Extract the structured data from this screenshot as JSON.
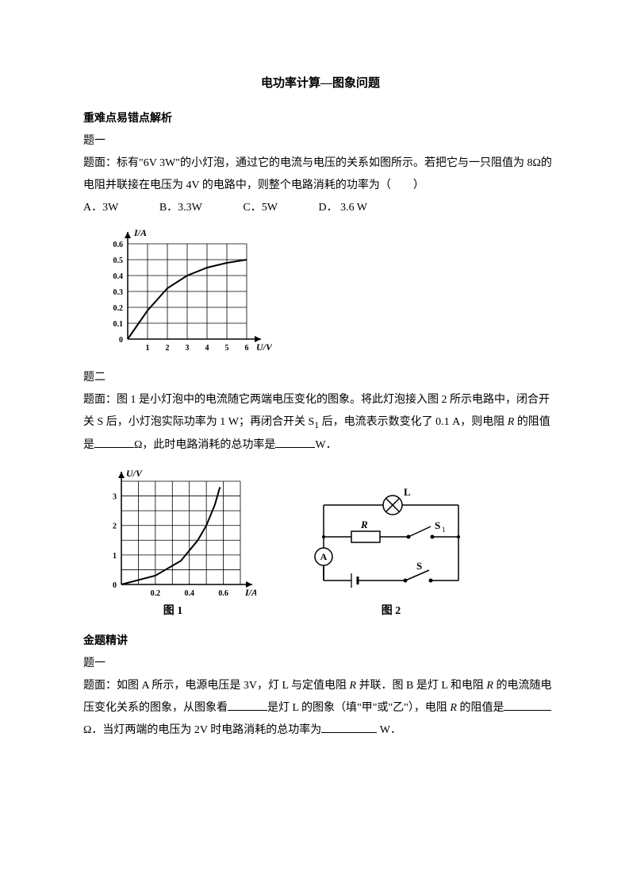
{
  "title": "电功率计算—图象问题",
  "section1": {
    "header": "重难点易错点解析",
    "q1": {
      "label": "题一",
      "body": "题面：标有\"6V 3W\"的小灯泡，通过它的电流与电压的关系如图所示。若把它与一只阻值为 8Ω的电阻并联接在电压为 4V 的电路中，则整个电路消耗的功率为（　　）",
      "options": {
        "a": "A．3W",
        "b": "B．3.3W",
        "c": "C．5W",
        "d": "D． 3.6 W"
      },
      "chart": {
        "type": "line",
        "y_label": "I/A",
        "x_label": "U/V",
        "x_ticks": [
          "1",
          "2",
          "3",
          "4",
          "5",
          "6"
        ],
        "y_ticks": [
          "0",
          "0.1",
          "0.2",
          "0.3",
          "0.4",
          "0.5",
          "0.6"
        ],
        "xlim": [
          0,
          6
        ],
        "ylim": [
          0,
          0.6
        ],
        "points": [
          [
            0,
            0
          ],
          [
            1,
            0.18
          ],
          [
            2,
            0.32
          ],
          [
            3,
            0.4
          ],
          [
            4,
            0.45
          ],
          [
            5,
            0.48
          ],
          [
            6,
            0.5
          ]
        ],
        "line_color": "#000000",
        "grid_color": "#000000",
        "line_width": 2,
        "axis_fontsize": 12,
        "tick_fontsize": 10
      }
    },
    "q2": {
      "label": "题二",
      "body_pre": "题面：图 1 是小灯泡中的电流随它两端电压变化的图象。将此灯泡接入图 2 所示电路中，闭合开关 S 后，小灯泡实际功率为 1 W；再闭合开关 S",
      "sub1": "1",
      "body_mid": "后，电流表示数变化了 0.1 A，则电阻",
      "r": "R",
      "body_blank1_pre": "的阻值是",
      "unit1": "Ω，此时电路消耗的总功率是",
      "unit2": "W．",
      "chart": {
        "type": "line",
        "y_label": "U/V",
        "x_label": "I/A",
        "x_ticks": [
          "0.2",
          "0.4",
          "0.6"
        ],
        "y_ticks": [
          "0",
          "1",
          "2",
          "3"
        ],
        "xlim": [
          0,
          0.7
        ],
        "ylim": [
          0,
          3.5
        ],
        "points": [
          [
            0,
            0
          ],
          [
            0.2,
            0.3
          ],
          [
            0.35,
            0.8
          ],
          [
            0.45,
            1.5
          ],
          [
            0.5,
            2.0
          ],
          [
            0.55,
            2.7
          ],
          [
            0.58,
            3.3
          ]
        ],
        "line_color": "#000000",
        "grid_color": "#000000",
        "line_width": 2,
        "caption": "图 1"
      },
      "circuit": {
        "caption": "图 2",
        "labels": {
          "L": "L",
          "R": "R",
          "S1": "S",
          "S1_sub": "1",
          "S": "S",
          "A": "A"
        },
        "line_color": "#000000",
        "line_width": 1.5
      }
    }
  },
  "section2": {
    "header": "金题精讲",
    "q1": {
      "label": "题一",
      "body_p1": "题面：如图 A 所示，电源电压是 3V，灯 L 与定值电阻 ",
      "r": "R",
      "body_p1b": " 并联．图 B 是灯 L 和电阻 ",
      "body_p1c": " 的电流随电压变化关系的图象，从图象看",
      "body_p2": "是灯 L 的图象（填\"甲\"或\"乙\"），电阻 ",
      "body_p3": " 的阻值是",
      "unit1": "Ω．当灯两端的电压为 2V 时电路消耗的总功率为",
      "unit2": " W．"
    }
  }
}
